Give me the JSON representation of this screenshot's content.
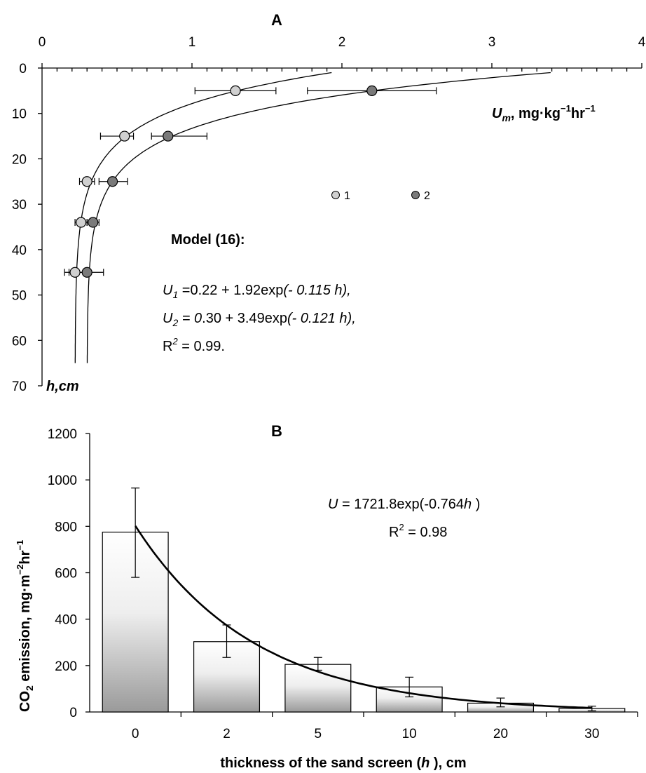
{
  "chart_data": [
    {
      "panel": "A",
      "type": "scatter",
      "title": "A",
      "x_axis": {
        "position": "top",
        "range": [
          0,
          4
        ],
        "ticks": [
          "0",
          "1",
          "2",
          "3",
          "4"
        ],
        "label_main": "U",
        "label_sub": "m",
        "label_unit": ", mg·kg",
        "label_exp1": "−1",
        "label_mid": "hr",
        "label_exp2": "−1"
      },
      "y_axis": {
        "inverted": true,
        "range": [
          0,
          70
        ],
        "ticks": [
          "0",
          "10",
          "20",
          "30",
          "40",
          "50",
          "60",
          "70"
        ],
        "label": "h,cm"
      },
      "series": [
        {
          "name": "1",
          "color": "#d0d0d0",
          "points": [
            {
              "x": 1.29,
              "y": 5,
              "xerr_low": 1.02,
              "xerr_high": 1.56
            },
            {
              "x": 0.55,
              "y": 15,
              "xerr_low": 0.39,
              "xerr_high": 0.61
            },
            {
              "x": 0.3,
              "y": 25,
              "xerr_low": 0.25,
              "xerr_high": 0.35
            },
            {
              "x": 0.26,
              "y": 34,
              "xerr_low": 0.22,
              "xerr_high": 0.3
            },
            {
              "x": 0.22,
              "y": 45,
              "xerr_low": 0.15,
              "xerr_high": 0.29
            }
          ],
          "model": {
            "a": 0.22,
            "b": 1.92,
            "k": 0.115
          }
        },
        {
          "name": "2",
          "color": "#7a7a7a",
          "points": [
            {
              "x": 2.2,
              "y": 5,
              "xerr_low": 1.77,
              "xerr_high": 2.63
            },
            {
              "x": 0.84,
              "y": 15,
              "xerr_low": 0.73,
              "xerr_high": 1.1
            },
            {
              "x": 0.47,
              "y": 25,
              "xerr_low": 0.38,
              "xerr_high": 0.57
            },
            {
              "x": 0.34,
              "y": 34,
              "xerr_low": 0.3,
              "xerr_high": 0.38
            },
            {
              "x": 0.3,
              "y": 45,
              "xerr_low": 0.18,
              "xerr_high": 0.41
            }
          ],
          "model": {
            "a": 0.3,
            "b": 3.49,
            "k": 0.121
          }
        }
      ],
      "annotation": {
        "heading": "Model (16):",
        "u1_var": "U",
        "u1_sub": "1",
        "u1_text": " =0.22 + 1.92exp",
        "u1_tail": "(- 0.115 h),",
        "u2_var": "U",
        "u2_sub": "2",
        "u2_text": " = 0",
        "u2_mid": ".30 + 3.49exp",
        "u2_tail": "(- 0.121 h),",
        "r2_base": "R",
        "r2_exp": "2",
        "r2_text": " =  0.99."
      }
    },
    {
      "panel": "B",
      "type": "bar",
      "title": "B",
      "categories": [
        "0",
        "2",
        "5",
        "10",
        "20",
        "30"
      ],
      "values": [
        775,
        303,
        205,
        108,
        38,
        15
      ],
      "err_low": [
        580,
        235,
        180,
        65,
        22,
        5
      ],
      "err_high": [
        965,
        375,
        235,
        150,
        60,
        25
      ],
      "ylim": [
        0,
        1200
      ],
      "y_ticks": [
        "0",
        "200",
        "400",
        "600",
        "800",
        "1000",
        "1200"
      ],
      "ylabel_a": "CO",
      "ylabel_sub": "2",
      "ylabel_b": " emission, mg·m",
      "ylabel_exp1": "−2",
      "ylabel_c": "hr",
      "ylabel_exp2": "−1",
      "xlabel_a": "thickness of the sand screen (",
      "xlabel_var": "h",
      "xlabel_b": " ), cm",
      "fit": {
        "a": 1721.8,
        "k": 0.764
      },
      "eq_var": "U",
      "eq_text": " = 1721.8exp(-0.764",
      "eq_var2": "h",
      "eq_tail": " )",
      "r2_base": "R",
      "r2_exp": "2",
      "r2_text": " = 0.98"
    }
  ]
}
